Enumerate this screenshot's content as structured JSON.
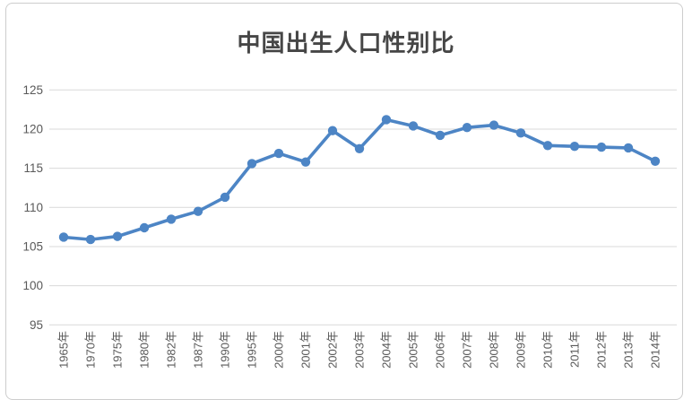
{
  "chart_data": {
    "type": "line",
    "title": "中国出生人口性别比",
    "categories": [
      "1965年",
      "1970年",
      "1975年",
      "1980年",
      "1982年",
      "1987年",
      "1990年",
      "1995年",
      "2000年",
      "2001年",
      "2002年",
      "2003年",
      "2004年",
      "2005年",
      "2006年",
      "2007年",
      "2008年",
      "2009年",
      "2010年",
      "2011年",
      "2012年",
      "2013年",
      "2014年"
    ],
    "series": [
      {
        "name": "出生人口性别比",
        "values": [
          106.2,
          105.9,
          106.3,
          107.4,
          108.5,
          109.5,
          111.3,
          115.6,
          116.9,
          115.8,
          119.8,
          117.5,
          121.2,
          120.4,
          119.2,
          120.2,
          120.5,
          119.5,
          117.9,
          117.8,
          117.7,
          117.6,
          115.9
        ]
      }
    ],
    "xlabel": "",
    "ylabel": "",
    "ylim": [
      95,
      125
    ],
    "yticks": [
      95,
      100,
      105,
      110,
      115,
      120,
      125
    ],
    "grid": true,
    "legend_position": "none",
    "colors": {
      "line": "#4d85c5",
      "marker": "#4d85c5",
      "gridline": "#d9d9d9",
      "axis_label": "#595959",
      "title": "#464646",
      "frame_border": "#cdcdcd",
      "background": "#ffffff"
    }
  }
}
